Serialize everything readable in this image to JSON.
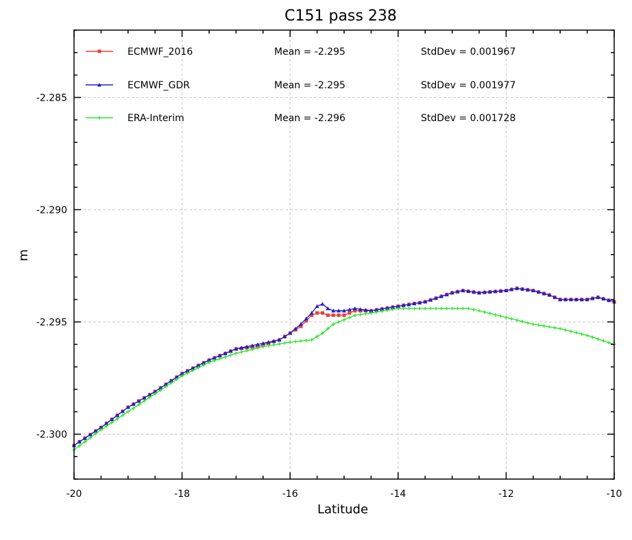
{
  "chart_data": {
    "type": "line",
    "title": "C151 pass 238",
    "xlabel": "Latitude",
    "ylabel": "m",
    "xlim": [
      -20,
      -10
    ],
    "ylim": [
      -2.302,
      -2.282
    ],
    "grid": true,
    "legend_placement": "top",
    "xticks": [
      -20,
      -18,
      -16,
      -14,
      -12,
      -10
    ],
    "xtick_labels": [
      "-20",
      "-18",
      "-16",
      "-14",
      "-12",
      "-10"
    ],
    "yticks": [
      -2.285,
      -2.29,
      -2.295,
      -2.3
    ],
    "ytick_labels": [
      "-2.285",
      "-2.290",
      "-2.295",
      "-2.300"
    ],
    "series": [
      {
        "name": "ECMWF_2016",
        "color": "#e8423f",
        "marker": "square",
        "mean_text": "Mean = -2.295",
        "stddev_text": "StdDev = 0.001967",
        "x": [
          -20,
          -19.5,
          -19,
          -18.5,
          -18,
          -17.5,
          -17,
          -16.6,
          -16.2,
          -16,
          -15.8,
          -15.6,
          -15.5,
          -15.4,
          -15.3,
          -15.2,
          -15,
          -14.8,
          -14.5,
          -14,
          -13.5,
          -13,
          -12.8,
          -12.5,
          -12,
          -11.8,
          -11.5,
          -11.2,
          -11,
          -10.5,
          -10.3,
          -10
        ],
        "y": [
          -2.3005,
          -2.2997,
          -2.2988,
          -2.2981,
          -2.2973,
          -2.2967,
          -2.2962,
          -2.2961,
          -2.2958,
          -2.2955,
          -2.2952,
          -2.2947,
          -2.2946,
          -2.2946,
          -2.2947,
          -2.2947,
          -2.2947,
          -2.2945,
          -2.2945,
          -2.2943,
          -2.2941,
          -2.2937,
          -2.2936,
          -2.2937,
          -2.2936,
          -2.2935,
          -2.2936,
          -2.2938,
          -2.294,
          -2.294,
          -2.2939,
          -2.2941
        ]
      },
      {
        "name": "ECMWF_GDR",
        "color": "#1f1fc8",
        "marker": "triangle",
        "mean_text": "Mean = -2.295",
        "stddev_text": "StdDev = 0.001977",
        "x": [
          -20,
          -19.5,
          -19,
          -18.5,
          -18,
          -17.5,
          -17,
          -16.6,
          -16.2,
          -16,
          -15.8,
          -15.6,
          -15.5,
          -15.4,
          -15.3,
          -15.2,
          -15,
          -14.8,
          -14.5,
          -14,
          -13.5,
          -13,
          -12.8,
          -12.5,
          -12,
          -11.8,
          -11.5,
          -11.2,
          -11,
          -10.5,
          -10.3,
          -10
        ],
        "y": [
          -2.3005,
          -2.2997,
          -2.2988,
          -2.2981,
          -2.2973,
          -2.2967,
          -2.2962,
          -2.296,
          -2.2958,
          -2.2955,
          -2.2951,
          -2.2946,
          -2.2943,
          -2.2942,
          -2.2944,
          -2.2945,
          -2.2945,
          -2.2944,
          -2.2945,
          -2.2943,
          -2.2941,
          -2.2937,
          -2.2936,
          -2.2937,
          -2.2936,
          -2.2935,
          -2.2936,
          -2.2938,
          -2.294,
          -2.294,
          -2.2939,
          -2.2941
        ]
      },
      {
        "name": "ERA-Interim",
        "color": "#2ee62e",
        "marker": "cross",
        "mean_text": "Mean = -2.296",
        "stddev_text": "StdDev = 0.001728",
        "x": [
          -20,
          -19.5,
          -19,
          -18.5,
          -18,
          -17.5,
          -17,
          -16.5,
          -16,
          -15.6,
          -15.4,
          -15.2,
          -15,
          -14.8,
          -14.5,
          -14,
          -13.5,
          -13,
          -12.7,
          -12.5,
          -12,
          -11.5,
          -11,
          -10.5,
          -10
        ],
        "y": [
          -2.3007,
          -2.2998,
          -2.299,
          -2.2982,
          -2.2974,
          -2.2968,
          -2.2964,
          -2.2961,
          -2.2959,
          -2.2958,
          -2.2955,
          -2.2951,
          -2.2949,
          -2.2947,
          -2.2946,
          -2.2944,
          -2.2944,
          -2.2944,
          -2.2944,
          -2.2945,
          -2.2948,
          -2.2951,
          -2.2953,
          -2.2956,
          -2.296
        ]
      }
    ]
  }
}
